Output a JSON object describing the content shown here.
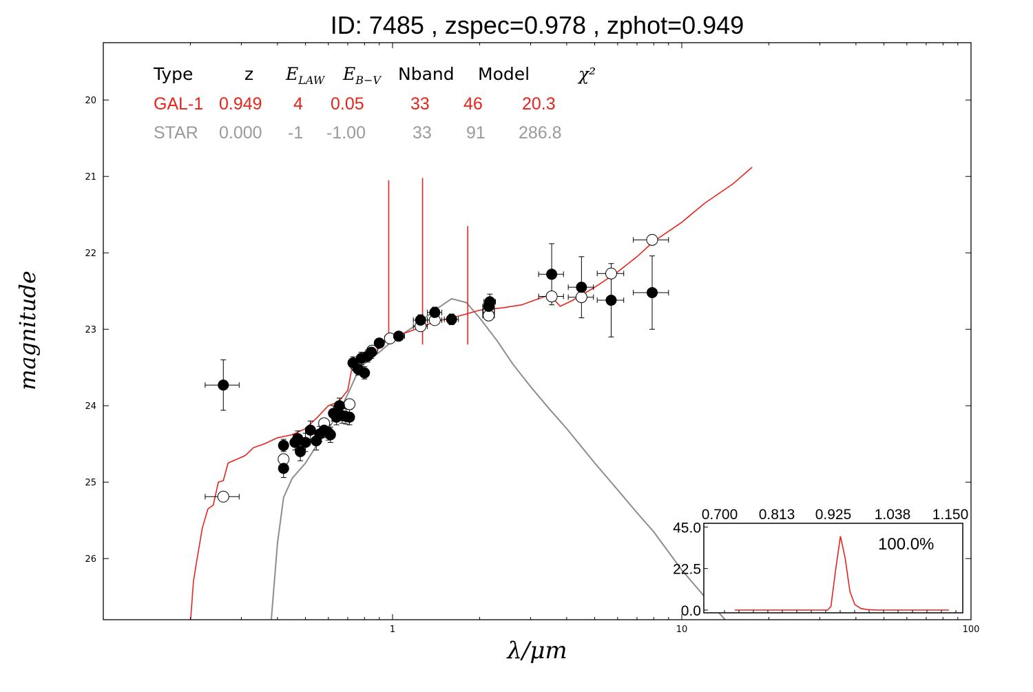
{
  "title": "ID:  7485  , zspec=0.978 , zphot=0.949",
  "colors": {
    "galaxy": "#e8231c",
    "star": "#8c8c8c",
    "axis": "#000000"
  },
  "table": {
    "headers": [
      "Type",
      "z",
      "E_LAW",
      "E_B-V",
      "Nband",
      "Model",
      "χ²"
    ],
    "rows": [
      {
        "name": "GAL-1",
        "values": [
          "GAL-1",
          "0.949",
          "4",
          "0.05",
          "33",
          "46",
          "20.3"
        ]
      },
      {
        "name": "STAR",
        "values": [
          "STAR",
          "0.000",
          "-1",
          "-1.00",
          "33",
          "91",
          "286.8"
        ]
      }
    ]
  },
  "chart_data": [
    {
      "type": "scatter",
      "title": "ID:  7485  , zspec=0.978 , zphot=0.949",
      "xlabel": "λ/μm",
      "ylabel": "magnitude",
      "xscale": "log",
      "xlim": [
        0.1,
        100
      ],
      "ylim": [
        26.8,
        19.25
      ],
      "y_inverted": true,
      "xticks": [
        1,
        10,
        100
      ],
      "xticklabels": [
        "1",
        "10",
        "100"
      ],
      "yticks": [
        20,
        21,
        22,
        23,
        24,
        25,
        26
      ],
      "yticklabels": [
        "20",
        "21",
        "22",
        "23",
        "24",
        "25",
        "26"
      ],
      "grid": false,
      "observed_points": [
        {
          "x": 0.26,
          "y": 23.73,
          "xerr": 0.035,
          "yerr": 0.33
        },
        {
          "x": 0.42,
          "y": 24.52,
          "xerr": 0.01,
          "yerr": 0.08
        },
        {
          "x": 0.42,
          "y": 24.82,
          "xerr": 0.01,
          "yerr": 0.12
        },
        {
          "x": 0.46,
          "y": 24.48,
          "xerr": 0.015,
          "yerr": 0.1
        },
        {
          "x": 0.47,
          "y": 24.43,
          "xerr": 0.015,
          "yerr": 0.1
        },
        {
          "x": 0.48,
          "y": 24.6,
          "xerr": 0.015,
          "yerr": 0.12
        },
        {
          "x": 0.5,
          "y": 24.48,
          "xerr": 0.02,
          "yerr": 0.12
        },
        {
          "x": 0.52,
          "y": 24.32,
          "xerr": 0.02,
          "yerr": 0.12
        },
        {
          "x": 0.545,
          "y": 24.46,
          "xerr": 0.02,
          "yerr": 0.12
        },
        {
          "x": 0.56,
          "y": 24.37,
          "xerr": 0.02,
          "yerr": 0.1
        },
        {
          "x": 0.58,
          "y": 24.32,
          "xerr": 0.02,
          "yerr": 0.1
        },
        {
          "x": 0.6,
          "y": 24.35,
          "xerr": 0.02,
          "yerr": 0.1
        },
        {
          "x": 0.61,
          "y": 24.38,
          "xerr": 0.02,
          "yerr": 0.1
        },
        {
          "x": 0.625,
          "y": 24.1,
          "xerr": 0.02,
          "yerr": 0.1
        },
        {
          "x": 0.64,
          "y": 24.15,
          "xerr": 0.02,
          "yerr": 0.1
        },
        {
          "x": 0.655,
          "y": 24.0,
          "xerr": 0.02,
          "yerr": 0.1
        },
        {
          "x": 0.67,
          "y": 24.13,
          "xerr": 0.02,
          "yerr": 0.1
        },
        {
          "x": 0.69,
          "y": 24.14,
          "xerr": 0.02,
          "yerr": 0.1
        },
        {
          "x": 0.71,
          "y": 24.15,
          "xerr": 0.02,
          "yerr": 0.1
        },
        {
          "x": 0.73,
          "y": 23.44,
          "xerr": 0.02,
          "yerr": 0.08
        },
        {
          "x": 0.76,
          "y": 23.52,
          "xerr": 0.02,
          "yerr": 0.08
        },
        {
          "x": 0.78,
          "y": 23.38,
          "xerr": 0.02,
          "yerr": 0.08
        },
        {
          "x": 0.8,
          "y": 23.57,
          "xerr": 0.02,
          "yerr": 0.08
        },
        {
          "x": 0.82,
          "y": 23.35,
          "xerr": 0.02,
          "yerr": 0.08
        },
        {
          "x": 0.845,
          "y": 23.3,
          "xerr": 0.02,
          "yerr": 0.08
        },
        {
          "x": 0.9,
          "y": 23.18,
          "xerr": 0.025,
          "yerr": 0.06
        },
        {
          "x": 1.05,
          "y": 23.09,
          "xerr": 0.05,
          "yerr": 0.06
        },
        {
          "x": 1.25,
          "y": 22.88,
          "xerr": 0.07,
          "yerr": 0.07
        },
        {
          "x": 1.4,
          "y": 22.78,
          "xerr": 0.08,
          "yerr": 0.07
        },
        {
          "x": 1.6,
          "y": 22.87,
          "xerr": 0.09,
          "yerr": 0.07
        },
        {
          "x": 2.15,
          "y": 22.7,
          "xerr": 0.1,
          "yerr": 0.1
        },
        {
          "x": 2.17,
          "y": 22.64,
          "xerr": 0.1,
          "yerr": 0.1
        },
        {
          "x": 3.55,
          "y": 22.28,
          "xerr": 0.35,
          "yerr": 0.4
        },
        {
          "x": 4.5,
          "y": 22.45,
          "xerr": 0.45,
          "yerr": 0.4
        },
        {
          "x": 5.7,
          "y": 22.62,
          "xerr": 0.6,
          "yerr": 0.48
        },
        {
          "x": 7.9,
          "y": 22.52,
          "xerr": 1.1,
          "yerr": 0.48
        }
      ],
      "model_points": [
        {
          "x": 0.26,
          "y": 25.19,
          "xerr": 0.035
        },
        {
          "x": 0.42,
          "y": 24.7,
          "xerr": 0.01
        },
        {
          "x": 0.58,
          "y": 24.23,
          "xerr": 0.02
        },
        {
          "x": 0.71,
          "y": 23.98,
          "xerr": 0.02
        },
        {
          "x": 0.75,
          "y": 23.48,
          "xerr": 0.02
        },
        {
          "x": 0.85,
          "y": 23.28,
          "xerr": 0.02
        },
        {
          "x": 0.98,
          "y": 23.12,
          "xerr": 0.04
        },
        {
          "x": 1.25,
          "y": 22.96,
          "xerr": 0.07
        },
        {
          "x": 1.4,
          "y": 22.88,
          "xerr": 0.08
        },
        {
          "x": 2.15,
          "y": 22.76,
          "xerr": 0.1
        },
        {
          "x": 2.15,
          "y": 22.82,
          "xerr": 0.1
        },
        {
          "x": 3.55,
          "y": 22.57,
          "xerr": 0.35
        },
        {
          "x": 4.5,
          "y": 22.58,
          "xerr": 0.45
        },
        {
          "x": 5.7,
          "y": 22.27,
          "xerr": 0.6
        },
        {
          "x": 7.9,
          "y": 21.83,
          "xerr": 1.1
        }
      ],
      "galaxy_template": {
        "name": "GAL-1",
        "points": [
          [
            0.2,
            26.85
          ],
          [
            0.205,
            26.3
          ],
          [
            0.21,
            26.05
          ],
          [
            0.22,
            25.6
          ],
          [
            0.23,
            25.35
          ],
          [
            0.24,
            25.3
          ],
          [
            0.25,
            25.0
          ],
          [
            0.26,
            24.98
          ],
          [
            0.27,
            24.75
          ],
          [
            0.29,
            24.7
          ],
          [
            0.31,
            24.65
          ],
          [
            0.33,
            24.55
          ],
          [
            0.36,
            24.5
          ],
          [
            0.4,
            24.42
          ],
          [
            0.45,
            24.38
          ],
          [
            0.5,
            24.3
          ],
          [
            0.55,
            24.15
          ],
          [
            0.6,
            24.0
          ],
          [
            0.65,
            23.95
          ],
          [
            0.7,
            23.8
          ],
          [
            0.72,
            23.55
          ],
          [
            0.75,
            23.45
          ],
          [
            0.8,
            23.35
          ],
          [
            0.85,
            23.3
          ],
          [
            0.9,
            23.25
          ],
          [
            0.95,
            23.15
          ],
          [
            1.0,
            23.1
          ],
          [
            1.1,
            23.05
          ],
          [
            1.2,
            23.0
          ],
          [
            1.4,
            22.9
          ],
          [
            1.6,
            22.85
          ],
          [
            1.8,
            22.8
          ],
          [
            2.0,
            22.75
          ],
          [
            2.4,
            22.72
          ],
          [
            2.8,
            22.68
          ],
          [
            3.2,
            22.6
          ],
          [
            3.5,
            22.55
          ],
          [
            3.8,
            22.7
          ],
          [
            4.2,
            22.62
          ],
          [
            5.0,
            22.45
          ],
          [
            6.0,
            22.25
          ],
          [
            7.0,
            22.05
          ],
          [
            8.0,
            21.85
          ],
          [
            10.0,
            21.6
          ],
          [
            12.0,
            21.35
          ],
          [
            15.0,
            21.1
          ],
          [
            17.5,
            20.88
          ]
        ],
        "emission_lines": [
          [
            0.97,
            21.05
          ],
          [
            1.27,
            21.02
          ],
          [
            1.82,
            21.65
          ]
        ]
      },
      "star_template": {
        "name": "STAR",
        "points": [
          [
            0.38,
            26.85
          ],
          [
            0.4,
            25.8
          ],
          [
            0.42,
            25.2
          ],
          [
            0.45,
            24.95
          ],
          [
            0.5,
            24.75
          ],
          [
            0.55,
            24.5
          ],
          [
            0.6,
            24.3
          ],
          [
            0.65,
            24.1
          ],
          [
            0.7,
            23.85
          ],
          [
            0.75,
            23.6
          ],
          [
            0.8,
            23.45
          ],
          [
            0.9,
            23.3
          ],
          [
            1.0,
            23.15
          ],
          [
            1.2,
            22.95
          ],
          [
            1.4,
            22.75
          ],
          [
            1.6,
            22.6
          ],
          [
            1.8,
            22.65
          ],
          [
            2.0,
            22.85
          ],
          [
            2.3,
            23.15
          ],
          [
            2.6,
            23.45
          ],
          [
            3.0,
            23.75
          ],
          [
            3.5,
            24.05
          ],
          [
            4.0,
            24.3
          ],
          [
            5.0,
            24.75
          ],
          [
            6.0,
            25.1
          ],
          [
            7.0,
            25.4
          ],
          [
            8.0,
            25.65
          ],
          [
            10.0,
            26.15
          ],
          [
            12.0,
            26.5
          ],
          [
            14.5,
            26.85
          ]
        ]
      }
    },
    {
      "type": "line",
      "inset": true,
      "label": "100.0%",
      "xlim": [
        0.7,
        1.15
      ],
      "ylim": [
        -1.5,
        47
      ],
      "xticklabels": [
        "0.700",
        "0.813",
        "0.925",
        "1.038",
        "1.150"
      ],
      "yticklabels": [
        "45.0",
        "22.5",
        "0.0"
      ],
      "x": [
        0.7,
        0.78,
        0.85,
        0.88,
        0.895,
        0.902,
        0.912,
        0.922,
        0.932,
        0.942,
        0.952,
        0.965,
        0.98,
        1.0,
        1.05,
        1.1,
        1.15
      ],
      "y": [
        0.0,
        0.0,
        0.0,
        0.0,
        0.0,
        2.0,
        22.0,
        40.0,
        28.0,
        10.0,
        3.0,
        0.8,
        0.2,
        0.0,
        0.0,
        0.0,
        0.0
      ]
    }
  ]
}
